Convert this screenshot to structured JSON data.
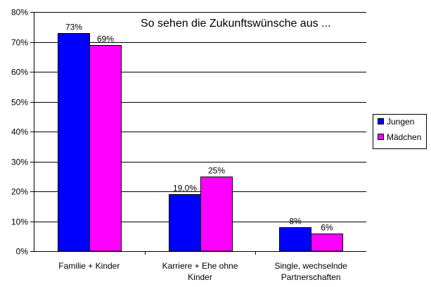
{
  "chart_data": {
    "type": "bar",
    "title": "So sehen die Zukunftswünsche aus ...",
    "xlabel": "",
    "ylabel": "",
    "ylim": [
      0,
      80
    ],
    "y_ticks": [
      "0%",
      "10%",
      "20%",
      "30%",
      "40%",
      "50%",
      "60%",
      "70%",
      "80%"
    ],
    "y_unit": "%",
    "grid": true,
    "legend_position": "right",
    "categories": [
      [
        "Familie + Kinder"
      ],
      [
        "Karriere + Ehe ohne",
        "Kinder"
      ],
      [
        "Single, wechselnde",
        "Partnerschaften"
      ]
    ],
    "series": [
      {
        "name": "Jungen",
        "color": "#0000ff",
        "values": [
          73,
          19,
          8
        ],
        "labels": [
          "73%",
          "19,0%",
          "8%"
        ]
      },
      {
        "name": "Mädchen",
        "color": "#ff00ff",
        "values": [
          69,
          25,
          6
        ],
        "labels": [
          "69%",
          "25%",
          "6%"
        ]
      }
    ]
  }
}
